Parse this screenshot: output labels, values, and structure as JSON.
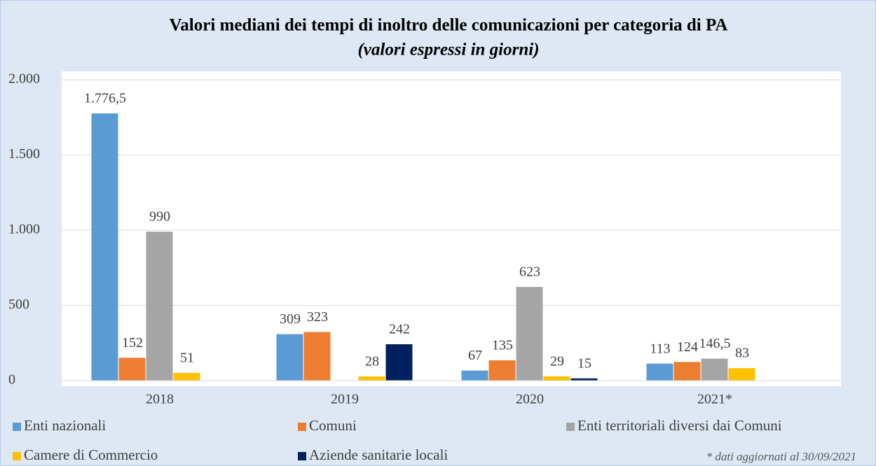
{
  "chart_data": {
    "type": "bar",
    "title": "Valori mediani dei tempi di inoltro delle comunicazioni per categoria di PA",
    "subtitle": "(valori espressi in giorni)",
    "categories": [
      "2018",
      "2019",
      "2020",
      "2021*"
    ],
    "series": [
      {
        "name": "Enti nazionali",
        "color": "#5b9bd5",
        "values": [
          1776.5,
          309,
          67,
          113
        ],
        "value_labels": [
          "1.776,5",
          "309",
          "67",
          "113"
        ]
      },
      {
        "name": "Comuni",
        "color": "#ed7d31",
        "values": [
          152,
          323,
          135,
          124
        ]
      },
      {
        "name": "Enti territoriali diversi dai Comuni",
        "color": "#a5a5a5",
        "values": [
          990,
          null,
          623,
          146.5
        ],
        "value_labels": [
          "990",
          null,
          "623",
          "146,5"
        ]
      },
      {
        "name": "Camere di Commercio",
        "color": "#ffc000",
        "values": [
          51,
          28,
          29,
          83
        ]
      },
      {
        "name": "Aziende sanitarie locali",
        "color": "#002060",
        "values": [
          null,
          242,
          15,
          null
        ]
      }
    ],
    "ylim": [
      0,
      2000
    ],
    "yticks": [
      0,
      500,
      {
        "value": 1000,
        "label": "1.000"
      },
      {
        "value": 1500,
        "label": "1.500"
      },
      {
        "value": 2000,
        "label": "2.000"
      }
    ],
    "grid": true,
    "legend": "bottom",
    "footnote": "* dati aggiornati al 30/09/2021"
  }
}
